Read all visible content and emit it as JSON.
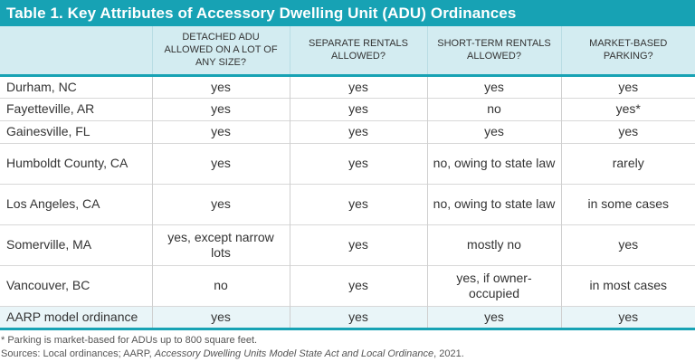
{
  "title": "Table 1. Key Attributes of Accessory Dwelling Unit (ADU) Ordinances",
  "columns": [
    "",
    "DETACHED ADU ALLOWED ON A LOT OF ANY SIZE?",
    "SEPARATE RENTALS ALLOWED?",
    "SHORT-TERM RENTALS ALLOWED?",
    "MARKET-BASED PARKING?"
  ],
  "rows": [
    [
      "Durham, NC",
      "yes",
      "yes",
      "yes",
      "yes"
    ],
    [
      "Fayetteville, AR",
      "yes",
      "yes",
      "no",
      "yes*"
    ],
    [
      "Gainesville, FL",
      "yes",
      "yes",
      "yes",
      "yes"
    ],
    [
      "Humboldt County, CA",
      "yes",
      "yes",
      "no, owing to state law",
      "rarely"
    ],
    [
      "Los Angeles, CA",
      "yes",
      "yes",
      "no, owing to state law",
      "in some cases"
    ],
    [
      "Somerville, MA",
      "yes, except narrow lots",
      "yes",
      "mostly no",
      "yes"
    ],
    [
      "Vancouver, BC",
      "no",
      "yes",
      "yes, if owner-occupied",
      "in most cases"
    ],
    [
      "AARP model ordinance",
      "yes",
      "yes",
      "yes",
      "yes"
    ]
  ],
  "footnote": "* Parking is market-based for ADUs up to 800 square feet.",
  "sources": {
    "prefix": "Sources: Local ordinances; AARP, ",
    "title": "Accessory Dwelling Units Model State Act and Local Ordinance",
    "suffix": ", 2021."
  },
  "colors": {
    "accent": "#17a2b4",
    "header_bg": "#d3ecf1"
  }
}
